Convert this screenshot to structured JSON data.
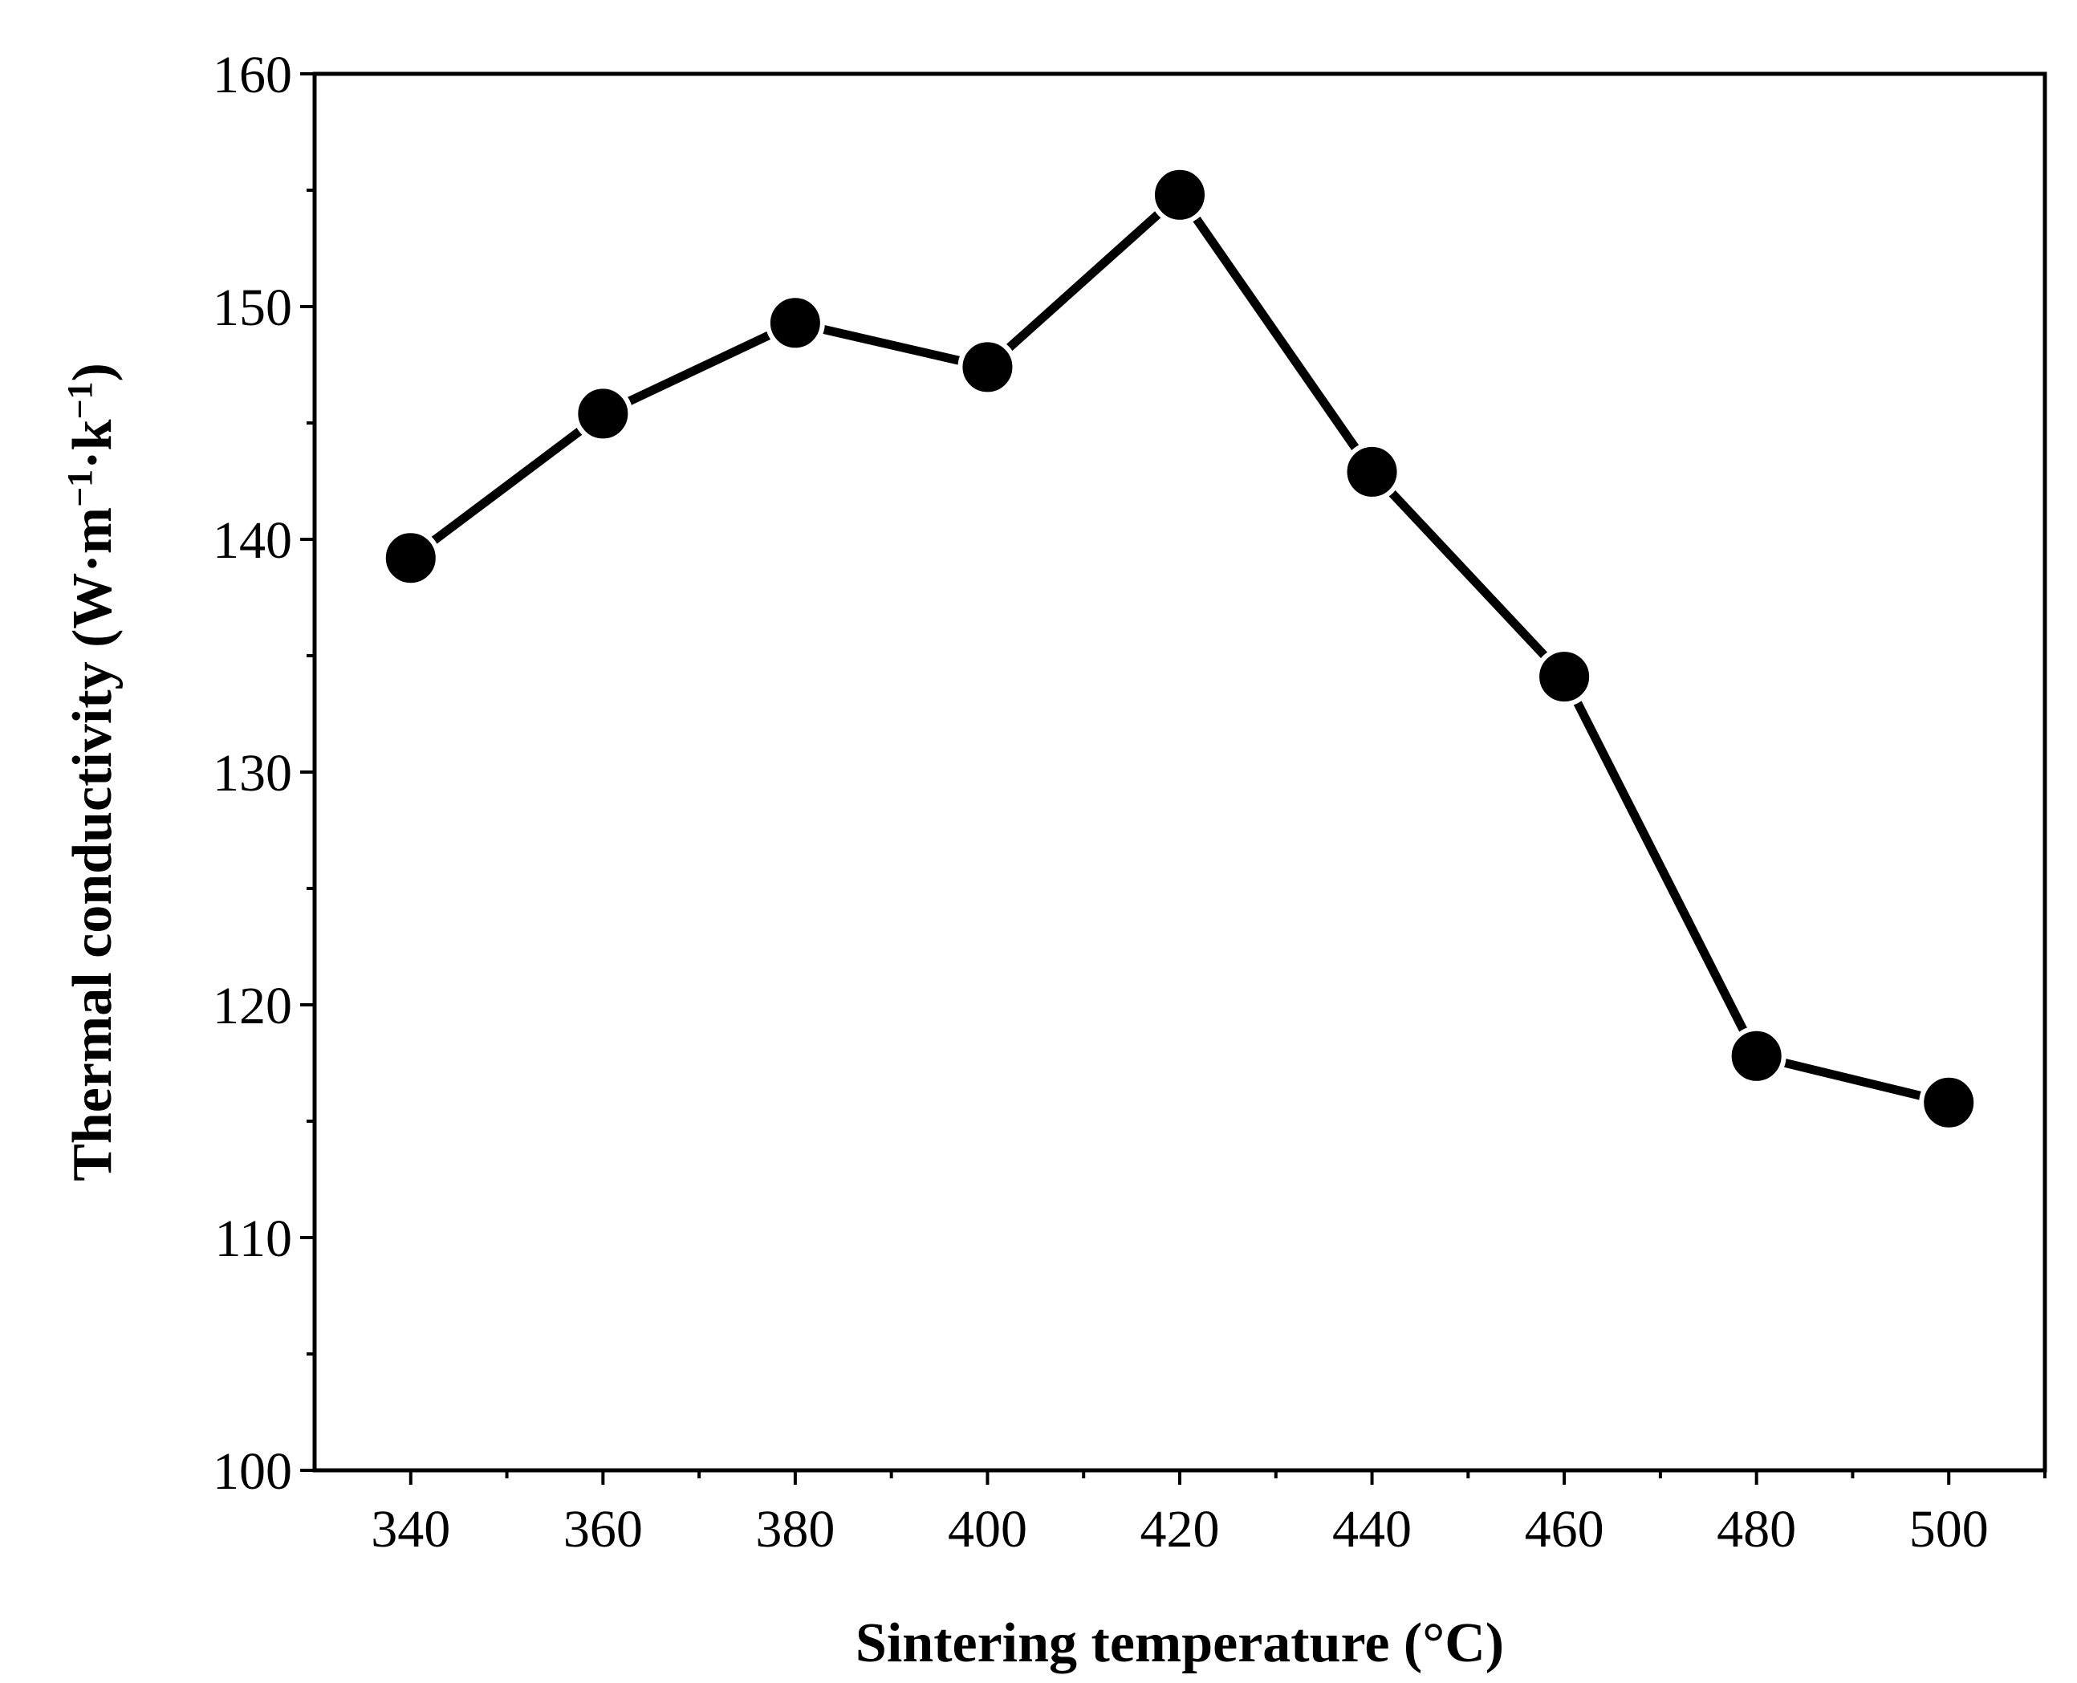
{
  "chart_data": {
    "type": "line",
    "title": "",
    "xlabel": "Sintering temperature (°C)",
    "ylabel_parts": {
      "prefix": "Thermal conductivity (W·m",
      "exp1": "−1",
      "middle": "·k",
      "exp2": "−1",
      "suffix": ")"
    },
    "x": [
      340,
      360,
      380,
      400,
      420,
      440,
      460,
      480,
      500
    ],
    "series": [
      {
        "name": "Thermal conductivity",
        "values": [
          139.2,
          145.4,
          149.3,
          147.4,
          154.8,
          142.9,
          134.1,
          117.8,
          115.8
        ]
      }
    ],
    "xlim": [
      330,
      510
    ],
    "ylim": [
      100,
      160
    ],
    "x_major_ticks": [
      340,
      360,
      380,
      400,
      420,
      440,
      460,
      480,
      500
    ],
    "x_tick_labels": [
      "340",
      "360",
      "380",
      "400",
      "420",
      "440",
      "460",
      "480",
      "500"
    ],
    "x_minor_ticks": [
      350,
      370,
      390,
      410,
      430,
      450,
      470,
      490,
      510
    ],
    "y_major_ticks": [
      100,
      110,
      120,
      130,
      140,
      150,
      160
    ],
    "y_tick_labels": [
      "100",
      "110",
      "120",
      "130",
      "140",
      "150",
      "160"
    ],
    "y_minor_ticks": [
      105,
      115,
      125,
      135,
      145,
      155
    ],
    "grid": false,
    "line_color": "#000000",
    "marker_color": "#000000",
    "marker": "filled-circle"
  }
}
